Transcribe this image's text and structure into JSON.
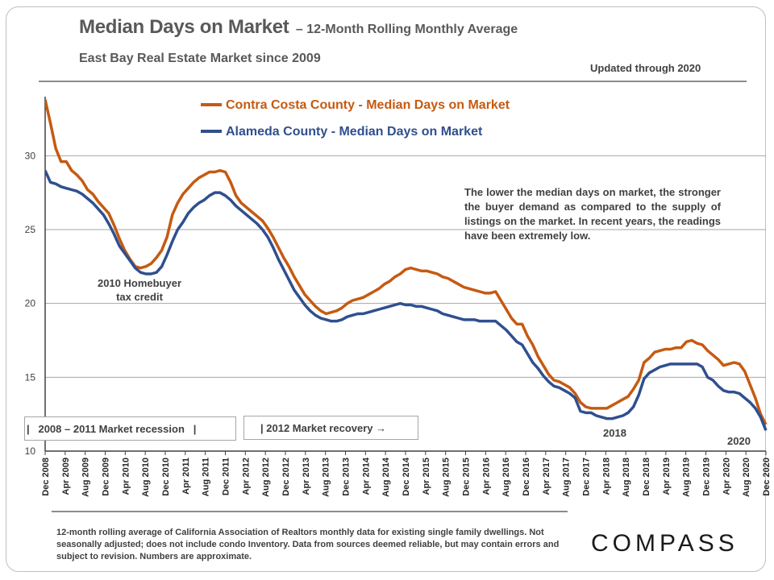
{
  "header": {
    "title": "Median Days on Market",
    "title_suffix": "– 12-Month Rolling Monthly Average",
    "subtitle": "East Bay Real Estate Market since 2009",
    "updated": "Updated through 2020"
  },
  "note": "The lower the median days on market, the stronger the buyer demand as compared to the supply of listings on the market. In recent years, the readings have been extremely low.",
  "annotations": {
    "homebuyer_line1": "2010 Homebuyer",
    "homebuyer_line2": "tax credit",
    "recession_box": "|   2008 – 2011 Market recession   |",
    "recovery_box": "| 2012 Market recovery →",
    "label_2018": "2018",
    "label_2020": "2020"
  },
  "footnote": "12-month rolling average of California Association of Realtors monthly data for existing single family dwellings. Not seasonally adjusted; does not include condo Inventory. Data from sources deemed reliable, but may contain errors and subject to revision. Numbers are approximate.",
  "logo": "COMPASS",
  "chart_data": {
    "type": "line",
    "title": "Median Days on Market",
    "ylim": [
      10,
      34
    ],
    "yticks": [
      10,
      15,
      20,
      25,
      30
    ],
    "grid": true,
    "legend_position": "top-left",
    "x_tick_labels": [
      "Dec 2008",
      "Apr 2009",
      "Aug 2009",
      "Dec 2009",
      "Apr 2010",
      "Aug 2010",
      "Dec 2010",
      "Apr 2011",
      "Aug 2011",
      "Dec 2011",
      "Apr 2012",
      "Aug 2012",
      "Dec 2012",
      "Apr 2013",
      "Aug 2013",
      "Dec 2013",
      "Apr 2014",
      "Aug 2014",
      "Dec 2014",
      "Apr 2015",
      "Aug 2015",
      "Dec 2015",
      "Apr 2016",
      "Aug 2016",
      "Dec 2016",
      "Apr 2017",
      "Aug 2017",
      "Dec 2017",
      "Apr 2018",
      "Aug 2018",
      "Dec 2018",
      "Apr 2019",
      "Aug 2019",
      "Dec 2019",
      "Apr 2020",
      "Aug 2020",
      "Dec 2020"
    ],
    "series": [
      {
        "name": "Contra Costa County - Median Days on Market",
        "color": "#c55a11",
        "values": [
          33.8,
          32.2,
          30.5,
          29.6,
          29.6,
          29.0,
          28.7,
          28.3,
          27.7,
          27.4,
          26.9,
          26.5,
          26.1,
          25.3,
          24.4,
          23.6,
          23.0,
          22.5,
          22.4,
          22.5,
          22.7,
          23.1,
          23.6,
          24.5,
          26.0,
          26.8,
          27.4,
          27.8,
          28.2,
          28.5,
          28.7,
          28.9,
          28.9,
          29.0,
          28.9,
          28.2,
          27.3,
          26.8,
          26.5,
          26.2,
          25.9,
          25.6,
          25.1,
          24.5,
          23.8,
          23.1,
          22.5,
          21.8,
          21.2,
          20.6,
          20.2,
          19.8,
          19.5,
          19.3,
          19.4,
          19.5,
          19.7,
          20.0,
          20.2,
          20.3,
          20.4,
          20.6,
          20.8,
          21.0,
          21.3,
          21.5,
          21.8,
          22.0,
          22.3,
          22.4,
          22.3,
          22.2,
          22.2,
          22.1,
          22.0,
          21.8,
          21.7,
          21.5,
          21.3,
          21.1,
          21.0,
          20.9,
          20.8,
          20.7,
          20.7,
          20.8,
          20.2,
          19.6,
          19.0,
          18.6,
          18.6,
          17.8,
          17.2,
          16.4,
          15.8,
          15.2,
          14.8,
          14.7,
          14.5,
          14.3,
          13.9,
          13.3,
          13.0,
          12.9,
          12.9,
          12.9,
          12.9,
          13.1,
          13.3,
          13.5,
          13.7,
          14.2,
          14.8,
          16.0,
          16.3,
          16.7,
          16.8,
          16.9,
          16.9,
          17.0,
          17.0,
          17.4,
          17.5,
          17.3,
          17.2,
          16.8,
          16.5,
          16.2,
          15.8,
          15.9,
          16.0,
          15.9,
          15.4,
          14.5,
          13.6,
          12.5,
          11.8
        ]
      },
      {
        "name": "Alameda County - Median Days on Market",
        "color": "#2f4f8f",
        "values": [
          29.0,
          28.2,
          28.1,
          27.9,
          27.8,
          27.7,
          27.6,
          27.4,
          27.1,
          26.8,
          26.4,
          26.0,
          25.4,
          24.7,
          23.9,
          23.4,
          22.9,
          22.4,
          22.1,
          22.0,
          22.0,
          22.1,
          22.5,
          23.3,
          24.2,
          25.0,
          25.5,
          26.1,
          26.5,
          26.8,
          27.0,
          27.3,
          27.5,
          27.5,
          27.3,
          27.0,
          26.6,
          26.3,
          26.0,
          25.7,
          25.4,
          25.0,
          24.5,
          23.8,
          23.0,
          22.3,
          21.6,
          20.9,
          20.4,
          19.9,
          19.5,
          19.2,
          19.0,
          18.9,
          18.8,
          18.8,
          18.9,
          19.1,
          19.2,
          19.3,
          19.3,
          19.4,
          19.5,
          19.6,
          19.7,
          19.8,
          19.9,
          20.0,
          19.9,
          19.9,
          19.8,
          19.8,
          19.7,
          19.6,
          19.5,
          19.3,
          19.2,
          19.1,
          19.0,
          18.9,
          18.9,
          18.9,
          18.8,
          18.8,
          18.8,
          18.8,
          18.5,
          18.2,
          17.8,
          17.4,
          17.2,
          16.6,
          16.0,
          15.6,
          15.1,
          14.7,
          14.4,
          14.3,
          14.1,
          13.9,
          13.6,
          12.7,
          12.6,
          12.6,
          12.4,
          12.3,
          12.2,
          12.2,
          12.3,
          12.4,
          12.6,
          13.0,
          13.8,
          14.9,
          15.3,
          15.5,
          15.7,
          15.8,
          15.9,
          15.9,
          15.9,
          15.9,
          15.9,
          15.9,
          15.7,
          15.0,
          14.8,
          14.4,
          14.1,
          14.0,
          14.0,
          13.9,
          13.6,
          13.3,
          12.9,
          12.3,
          11.4
        ]
      }
    ]
  }
}
